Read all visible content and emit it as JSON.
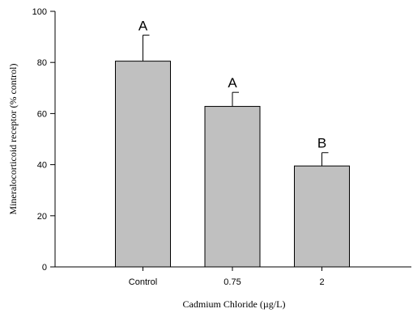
{
  "chart_data": {
    "type": "bar",
    "categories": [
      "Control",
      "0.75",
      "2"
    ],
    "values": [
      80.5,
      62.8,
      39.5
    ],
    "errors": [
      10.2,
      5.5,
      5.2
    ],
    "annotations": [
      "A",
      "A",
      "B"
    ],
    "xlabel": "Cadmium Chloride (µg/L)",
    "ylabel": "Mineralocorticoid receptor (% control)",
    "ylim": [
      0,
      100
    ],
    "yticks": [
      0,
      20,
      40,
      60,
      80,
      100
    ],
    "grid": false,
    "legend": "none",
    "colors": {
      "bar_fill": "#c0c0c0",
      "bar_stroke": "#000000",
      "axis": "#000000"
    }
  }
}
